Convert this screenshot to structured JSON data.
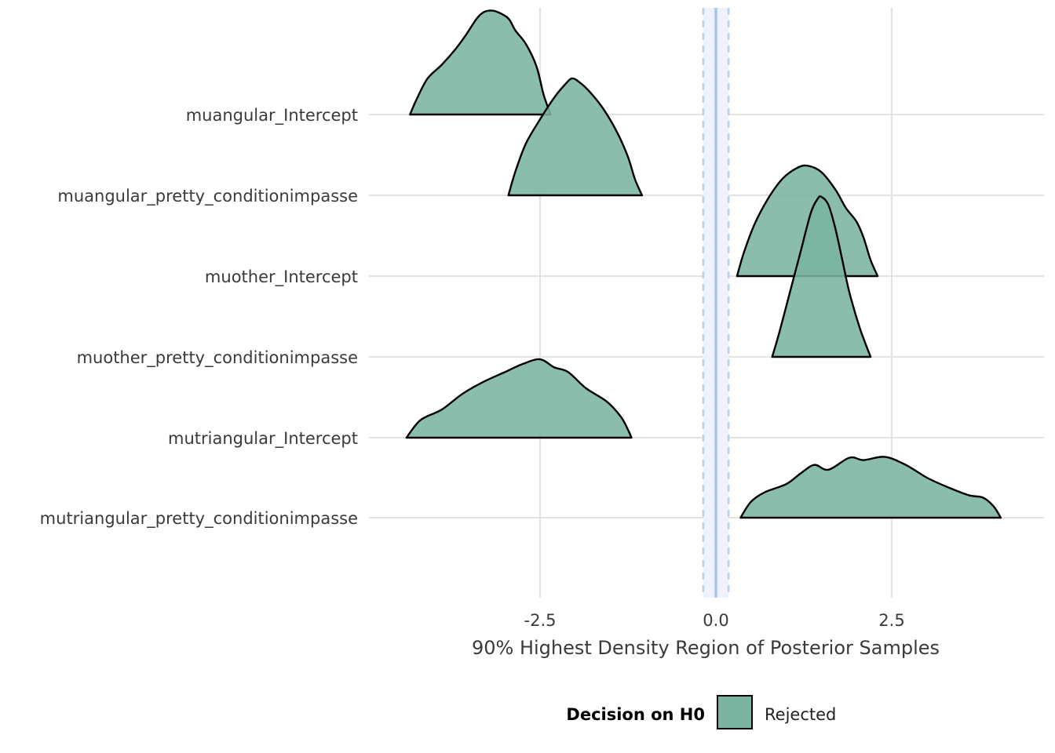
{
  "chart_data": {
    "type": "ridgeline",
    "title": "",
    "xlabel": "90% Highest Density Region of Posterior Samples",
    "ylabel": "",
    "xlim": [
      -5.0,
      4.65
    ],
    "x_ticks": [
      -2.5,
      0.0,
      2.5
    ],
    "x_tick_labels": [
      "-2.5",
      "0.0",
      "2.5"
    ],
    "grid": true,
    "rope": {
      "center": 0.0,
      "lower": -0.18,
      "upper": 0.18,
      "color": "#aac4ec"
    },
    "fill_color": "#7ab4a0",
    "legend": {
      "position": "bottom",
      "title": "Decision on H0",
      "entries": [
        {
          "label": "Rejected",
          "color": "#7ab4a0"
        }
      ]
    },
    "categories": [
      "muangular_Intercept",
      "muangular_pretty_conditionimpasse",
      "muother_Intercept",
      "muother_pretty_conditionimpasse",
      "mutriangular_Intercept",
      "mutriangular_pretty_conditionimpasse"
    ],
    "densities": [
      {
        "name": "muangular_Intercept",
        "points": [
          [
            -4.35,
            0.0
          ],
          [
            -4.25,
            0.2
          ],
          [
            -4.1,
            0.45
          ],
          [
            -3.9,
            0.62
          ],
          [
            -3.7,
            0.82
          ],
          [
            -3.55,
            1.0
          ],
          [
            -3.4,
            1.2
          ],
          [
            -3.3,
            1.28
          ],
          [
            -3.2,
            1.3
          ],
          [
            -3.1,
            1.28
          ],
          [
            -2.95,
            1.2
          ],
          [
            -2.85,
            1.05
          ],
          [
            -2.7,
            0.88
          ],
          [
            -2.55,
            0.6
          ],
          [
            -2.45,
            0.25
          ],
          [
            -2.35,
            0.0
          ]
        ]
      },
      {
        "name": "muangular_pretty_conditionimpasse",
        "points": [
          [
            -2.95,
            0.0
          ],
          [
            -2.85,
            0.3
          ],
          [
            -2.7,
            0.65
          ],
          [
            -2.5,
            0.95
          ],
          [
            -2.3,
            1.22
          ],
          [
            -2.15,
            1.38
          ],
          [
            -2.05,
            1.46
          ],
          [
            -1.95,
            1.42
          ],
          [
            -1.8,
            1.3
          ],
          [
            -1.6,
            1.08
          ],
          [
            -1.4,
            0.78
          ],
          [
            -1.25,
            0.48
          ],
          [
            -1.15,
            0.2
          ],
          [
            -1.05,
            0.0
          ]
        ]
      },
      {
        "name": "muother_Intercept",
        "points": [
          [
            0.3,
            0.0
          ],
          [
            0.4,
            0.3
          ],
          [
            0.55,
            0.65
          ],
          [
            0.75,
            0.98
          ],
          [
            0.95,
            1.22
          ],
          [
            1.15,
            1.35
          ],
          [
            1.3,
            1.38
          ],
          [
            1.5,
            1.3
          ],
          [
            1.7,
            1.08
          ],
          [
            1.85,
            0.85
          ],
          [
            2.0,
            0.68
          ],
          [
            2.1,
            0.48
          ],
          [
            2.2,
            0.2
          ],
          [
            2.3,
            0.0
          ]
        ]
      },
      {
        "name": "muother_pretty_conditionimpasse",
        "points": [
          [
            0.8,
            0.0
          ],
          [
            0.9,
            0.3
          ],
          [
            1.05,
            0.8
          ],
          [
            1.2,
            1.3
          ],
          [
            1.35,
            1.8
          ],
          [
            1.45,
            1.98
          ],
          [
            1.5,
            2.0
          ],
          [
            1.6,
            1.9
          ],
          [
            1.7,
            1.6
          ],
          [
            1.8,
            1.2
          ],
          [
            1.9,
            0.8
          ],
          [
            2.05,
            0.35
          ],
          [
            2.2,
            0.0
          ]
        ]
      },
      {
        "name": "mutriangular_Intercept",
        "points": [
          [
            -4.4,
            0.0
          ],
          [
            -4.2,
            0.22
          ],
          [
            -3.9,
            0.35
          ],
          [
            -3.6,
            0.55
          ],
          [
            -3.3,
            0.7
          ],
          [
            -3.0,
            0.82
          ],
          [
            -2.75,
            0.92
          ],
          [
            -2.5,
            0.98
          ],
          [
            -2.3,
            0.88
          ],
          [
            -2.1,
            0.82
          ],
          [
            -1.85,
            0.62
          ],
          [
            -1.55,
            0.45
          ],
          [
            -1.35,
            0.26
          ],
          [
            -1.25,
            0.1
          ],
          [
            -1.2,
            0.0
          ]
        ]
      },
      {
        "name": "mutriangular_pretty_conditionimpasse",
        "points": [
          [
            0.35,
            0.0
          ],
          [
            0.5,
            0.2
          ],
          [
            0.7,
            0.32
          ],
          [
            1.0,
            0.42
          ],
          [
            1.2,
            0.55
          ],
          [
            1.4,
            0.66
          ],
          [
            1.6,
            0.6
          ],
          [
            1.9,
            0.75
          ],
          [
            2.1,
            0.72
          ],
          [
            2.4,
            0.76
          ],
          [
            2.7,
            0.66
          ],
          [
            3.0,
            0.5
          ],
          [
            3.3,
            0.38
          ],
          [
            3.6,
            0.28
          ],
          [
            3.8,
            0.25
          ],
          [
            3.95,
            0.14
          ],
          [
            4.05,
            0.0
          ]
        ]
      }
    ]
  }
}
